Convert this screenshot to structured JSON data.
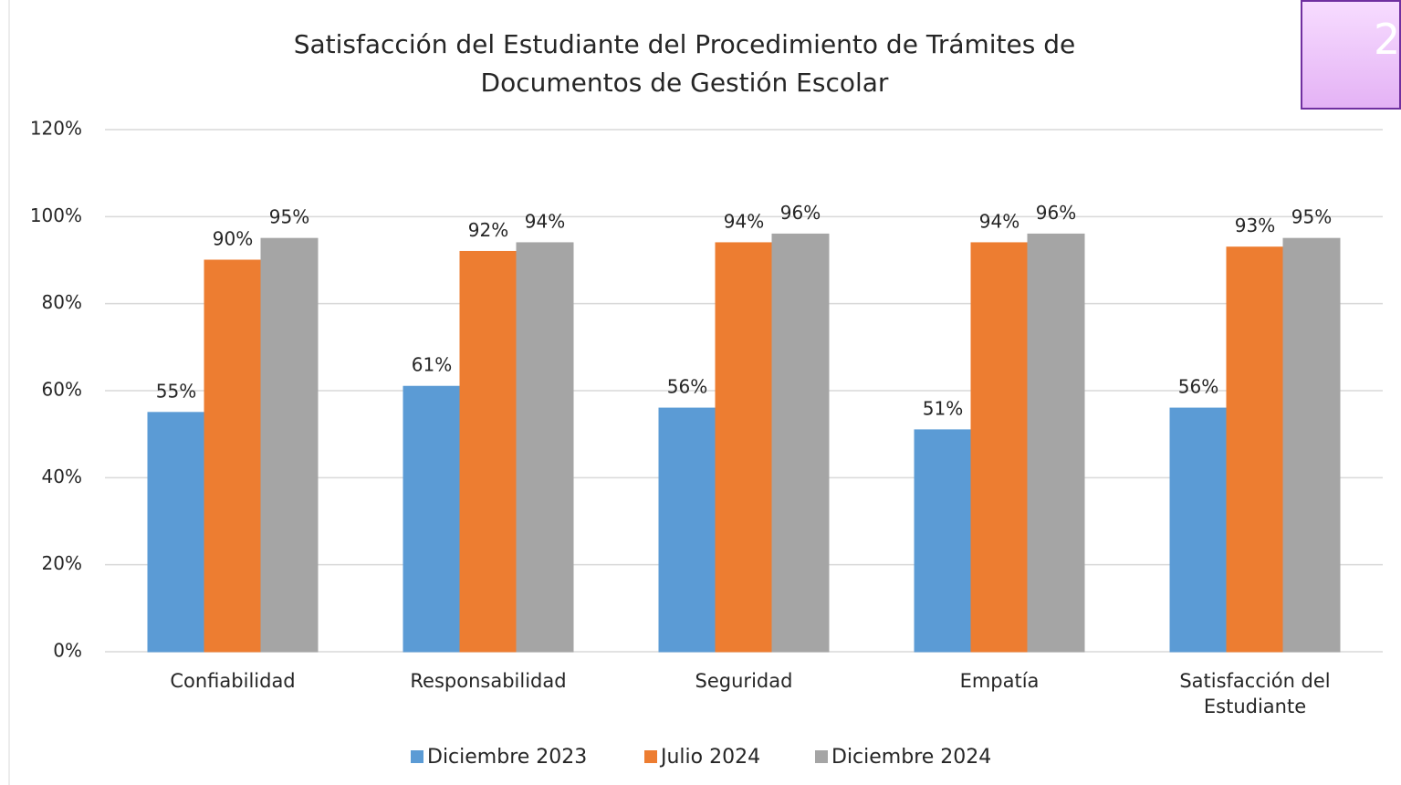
{
  "slide_number": "2",
  "chart_data": {
    "type": "bar",
    "title": "Satisfacción del Estudiante del Procedimiento de Trámites de Documentos de Gestión Escolar",
    "categories": [
      "Confiabilidad",
      "Responsabilidad",
      "Seguridad",
      "Empatía",
      "Satisfacción del Estudiante"
    ],
    "series": [
      {
        "name": "Diciembre 2023",
        "color": "#5b9bd5",
        "values": [
          55,
          61,
          56,
          51,
          56
        ],
        "value_labels": [
          "55%",
          "61%",
          "56%",
          "51%",
          "56%"
        ]
      },
      {
        "name": "Julio 2024",
        "color": "#ed7d31",
        "values": [
          90,
          92,
          94,
          94,
          93
        ],
        "value_labels": [
          "90%",
          "92%",
          "94%",
          "94%",
          "93%"
        ]
      },
      {
        "name": "Diciembre 2024",
        "color": "#a5a5a5",
        "values": [
          95,
          94,
          96,
          96,
          95
        ],
        "value_labels": [
          "95%",
          "94%",
          "96%",
          "96%",
          "95%"
        ]
      }
    ],
    "ylim": [
      0,
      120
    ],
    "yticks": [
      {
        "value": 0,
        "label": "0%"
      },
      {
        "value": 20,
        "label": "20%"
      },
      {
        "value": 40,
        "label": "40%"
      },
      {
        "value": 60,
        "label": "60%"
      },
      {
        "value": 80,
        "label": "80%"
      },
      {
        "value": 100,
        "label": "100%"
      },
      {
        "value": 120,
        "label": "120%"
      }
    ],
    "grid": true,
    "legend": "bottom"
  }
}
